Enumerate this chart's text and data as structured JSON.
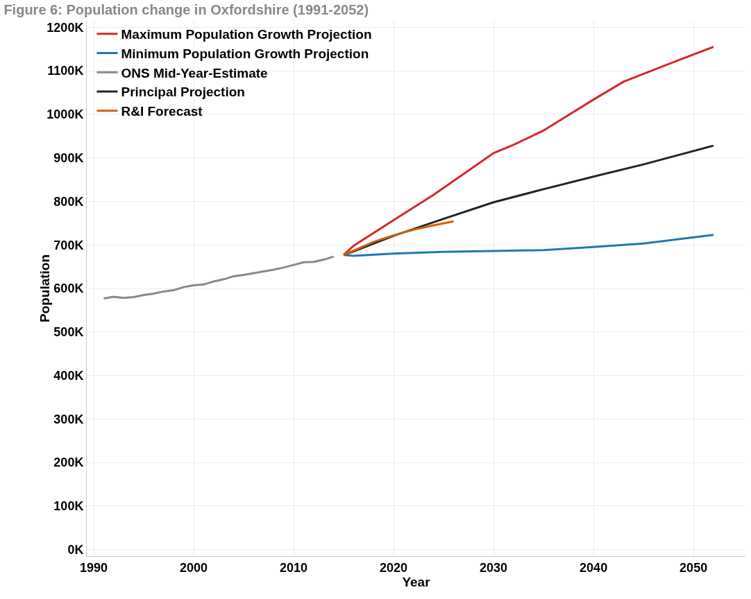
{
  "chart_data": {
    "type": "line",
    "title": "Figure 6: Population change in Oxfordshire (1991-2052)",
    "xlabel": "Year",
    "ylabel": "Population",
    "xlim": [
      1989.3,
      2055.2
    ],
    "xticks": [
      1990,
      2000,
      2010,
      2020,
      2030,
      2040,
      2050
    ],
    "ylim": [
      -15000,
      1215000
    ],
    "yticks": [
      {
        "value": 0,
        "label": "0K"
      },
      {
        "value": 100000,
        "label": "100K"
      },
      {
        "value": 200000,
        "label": "200K"
      },
      {
        "value": 300000,
        "label": "300K"
      },
      {
        "value": 400000,
        "label": "400K"
      },
      {
        "value": 500000,
        "label": "500K"
      },
      {
        "value": 600000,
        "label": "600K"
      },
      {
        "value": 700000,
        "label": "700K"
      },
      {
        "value": 800000,
        "label": "800K"
      },
      {
        "value": 900000,
        "label": "900K"
      },
      {
        "value": 1000000,
        "label": "1000K"
      },
      {
        "value": 1100000,
        "label": "1100K"
      },
      {
        "value": 1200000,
        "label": "1200K"
      }
    ],
    "grid": true,
    "legend": "top left",
    "marker": "none",
    "line_style": "solid",
    "series": [
      {
        "name": "Maximum Population Growth Projection",
        "color": "#d62728",
        "x": [
          2015,
          2016,
          2020,
          2024,
          2030,
          2032,
          2035,
          2040,
          2043,
          2048,
          2052
        ],
        "values": [
          677000,
          698000,
          757000,
          815000,
          911000,
          930000,
          963000,
          1034000,
          1075000,
          1120000,
          1155000
        ]
      },
      {
        "name": "Minimum Population Growth Projection",
        "color": "#1f77b4",
        "x": [
          2015,
          2016,
          2020,
          2025,
          2030,
          2035,
          2040,
          2045,
          2052
        ],
        "values": [
          677000,
          675000,
          680000,
          684000,
          686000,
          688000,
          695000,
          703000,
          723000
        ]
      },
      {
        "name": "ONS Mid-Year-Estimate",
        "color": "#888888",
        "x": [
          1991,
          1992,
          1993,
          1994,
          1995,
          1996,
          1997,
          1998,
          1999,
          2000,
          2001,
          2002,
          2003,
          2004,
          2005,
          2006,
          2007,
          2008,
          2009,
          2010,
          2011,
          2012,
          2013,
          2014
        ],
        "values": [
          577000,
          581000,
          578000,
          580000,
          585000,
          588000,
          593000,
          596000,
          603000,
          607000,
          609000,
          616000,
          621000,
          628000,
          631000,
          635000,
          639000,
          643000,
          648000,
          654000,
          660000,
          661000,
          666000,
          673000
        ]
      },
      {
        "name": "Principal Projection",
        "color": "#222222",
        "x": [
          2015,
          2016,
          2020,
          2025,
          2030,
          2035,
          2040,
          2045,
          2052
        ],
        "values": [
          677000,
          685000,
          721000,
          760000,
          798000,
          828000,
          857000,
          885000,
          928000
        ]
      },
      {
        "name": "R&I Forecast",
        "color": "#d35f0a",
        "x": [
          2015,
          2018,
          2020,
          2022,
          2024,
          2026
        ],
        "values": [
          677000,
          707000,
          722000,
          735000,
          745000,
          754000
        ]
      }
    ]
  }
}
